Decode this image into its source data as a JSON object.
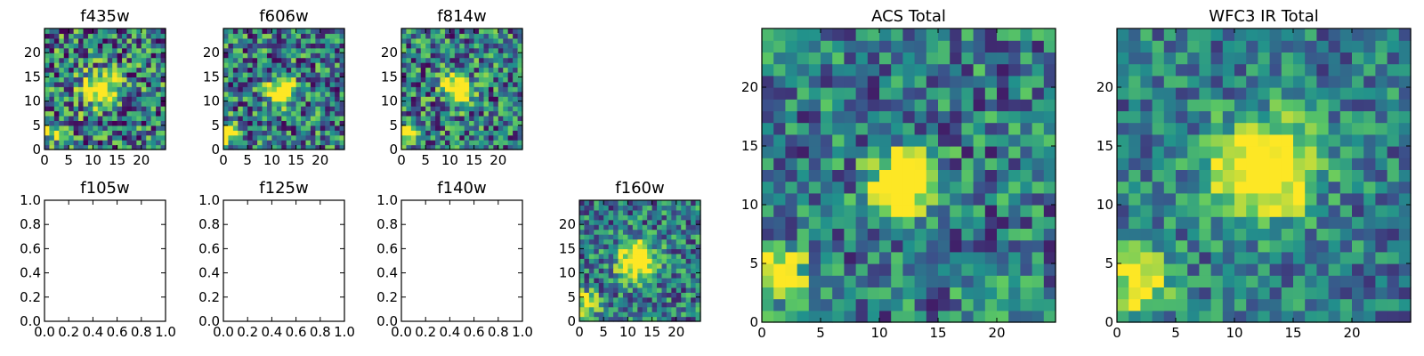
{
  "figure": {
    "width": 1600,
    "height": 400
  },
  "chart_data": [
    {
      "type": "heatmap",
      "title": "f435w",
      "xlim": [
        0,
        25
      ],
      "ylim": [
        0,
        25
      ],
      "xticks": [
        "0",
        "5",
        "10",
        "15",
        "20"
      ],
      "yticks": [
        "0",
        "5",
        "10",
        "15",
        "20"
      ],
      "grid": false,
      "values": "25x25 pixel cutout image (noisy), source at (11,12)",
      "seed": 3,
      "noise": 0.6,
      "source": {
        "x": 11,
        "y": 12,
        "amp": 0.9,
        "sigma": 2.5
      },
      "secondary": {
        "x": 1,
        "y": 3,
        "amp": 0.5,
        "sigma": 1.5
      }
    },
    {
      "type": "heatmap",
      "title": "f606w",
      "xlim": [
        0,
        25
      ],
      "ylim": [
        0,
        25
      ],
      "xticks": [
        "0",
        "5",
        "10",
        "15",
        "20"
      ],
      "yticks": [
        "0",
        "5",
        "10",
        "15",
        "20"
      ],
      "grid": false,
      "seed": 7,
      "noise": 0.55,
      "source": {
        "x": 11.5,
        "y": 11.5,
        "amp": 1.1,
        "sigma": 1.8
      },
      "secondary": {
        "x": 1,
        "y": 3,
        "amp": 0.7,
        "sigma": 1.5
      }
    },
    {
      "type": "heatmap",
      "title": "f814w",
      "xlim": [
        0,
        25
      ],
      "ylim": [
        0,
        25
      ],
      "xticks": [
        "0",
        "5",
        "10",
        "15",
        "20"
      ],
      "yticks": [
        "0",
        "5",
        "10",
        "15",
        "20"
      ],
      "grid": false,
      "seed": 11,
      "noise": 0.55,
      "source": {
        "x": 11,
        "y": 12,
        "amp": 1.0,
        "sigma": 2.0
      },
      "secondary": {
        "x": 1,
        "y": 3,
        "amp": 0.7,
        "sigma": 1.5
      }
    },
    {
      "type": "empty-axes",
      "title": "f105w",
      "xlim": [
        0.0,
        1.0
      ],
      "ylim": [
        0.0,
        1.0
      ],
      "xticks": [
        "0.0",
        "0.2",
        "0.4",
        "0.6",
        "0.8",
        "1.0"
      ],
      "yticks": [
        "0.0",
        "0.2",
        "0.4",
        "0.6",
        "0.8",
        "1.0"
      ]
    },
    {
      "type": "empty-axes",
      "title": "f125w",
      "xlim": [
        0.0,
        1.0
      ],
      "ylim": [
        0.0,
        1.0
      ],
      "xticks": [
        "0.0",
        "0.2",
        "0.4",
        "0.6",
        "0.8",
        "1.0"
      ],
      "yticks": [
        "0.0",
        "0.2",
        "0.4",
        "0.6",
        "0.8",
        "1.0"
      ]
    },
    {
      "type": "empty-axes",
      "title": "f140w",
      "xlim": [
        0.0,
        1.0
      ],
      "ylim": [
        0.0,
        1.0
      ],
      "xticks": [
        "0.0",
        "0.2",
        "0.4",
        "0.6",
        "0.8",
        "1.0"
      ],
      "yticks": [
        "0.0",
        "0.2",
        "0.4",
        "0.6",
        "0.8",
        "1.0"
      ]
    },
    {
      "type": "heatmap",
      "title": "f160w",
      "xlim": [
        0,
        25
      ],
      "ylim": [
        0,
        25
      ],
      "xticks": [
        "0",
        "5",
        "10",
        "15",
        "20"
      ],
      "yticks": [
        "0",
        "5",
        "10",
        "15",
        "20"
      ],
      "grid": false,
      "seed": 19,
      "noise": 0.45,
      "source": {
        "x": 11.5,
        "y": 12,
        "amp": 1.0,
        "sigma": 2.6
      },
      "secondary": {
        "x": 1,
        "y": 3,
        "amp": 0.6,
        "sigma": 1.8
      }
    },
    {
      "type": "heatmap",
      "title": "ACS Total",
      "xlim": [
        0,
        25
      ],
      "ylim": [
        0,
        25
      ],
      "xticks": [
        "0",
        "5",
        "10",
        "15",
        "20"
      ],
      "yticks": [
        "0",
        "5",
        "10",
        "15",
        "20"
      ],
      "grid": false,
      "seed": 23,
      "noise": 0.45,
      "source": {
        "x": 11.5,
        "y": 11.5,
        "amp": 1.2,
        "sigma": 1.7
      },
      "secondary": {
        "x": 1,
        "y": 3.5,
        "amp": 0.9,
        "sigma": 1.5
      }
    },
    {
      "type": "heatmap",
      "title": "WFC3 IR Total",
      "xlim": [
        0,
        25
      ],
      "ylim": [
        0,
        25
      ],
      "xticks": [
        "0",
        "5",
        "10",
        "15",
        "20"
      ],
      "yticks": [
        "0",
        "5",
        "10",
        "15",
        "20"
      ],
      "grid": false,
      "seed": 31,
      "noise": 0.35,
      "source": {
        "x": 12,
        "y": 12.5,
        "amp": 1.0,
        "sigma": 2.8
      },
      "secondary": {
        "x": 1.5,
        "y": 3,
        "amp": 0.6,
        "sigma": 2.0
      }
    }
  ],
  "colormap": [
    "#440154",
    "#3b528b",
    "#21918c",
    "#5ec962",
    "#fde725"
  ]
}
